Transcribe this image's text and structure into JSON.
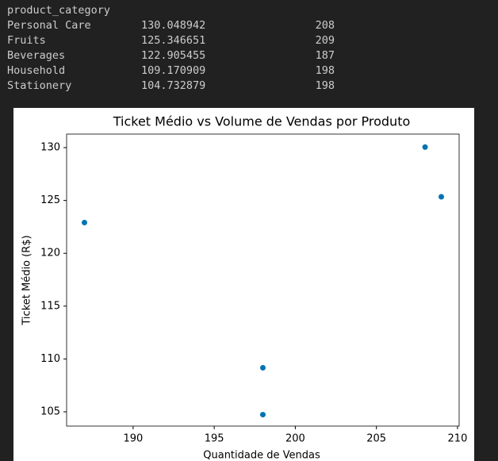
{
  "table": {
    "index_name": "product_category",
    "rows": [
      [
        "Personal Care",
        130.048942,
        208
      ],
      [
        "Fruits",
        125.346651,
        209
      ],
      [
        "Beverages",
        122.905455,
        187
      ],
      [
        "Household",
        109.170909,
        198
      ],
      [
        "Stationery",
        104.732879,
        198
      ]
    ]
  },
  "chart_data": {
    "type": "scatter",
    "title": "Ticket Médio vs Volume de Vendas por Produto",
    "x_label": "Quantidade de Vendas",
    "y_label": "Ticket Médio (R$)",
    "x": [
      208,
      209,
      187,
      198,
      198
    ],
    "values": [
      130.048942,
      125.346651,
      122.905455,
      109.170909,
      104.732879
    ],
    "color": "#0173b2",
    "xlim": [
      185.9,
      210.1
    ],
    "ylim": [
      103.65,
      131.28
    ],
    "xticks": [
      190,
      195,
      200,
      205,
      210
    ],
    "yticks": [
      105,
      110,
      115,
      120,
      125,
      130
    ],
    "grid": false
  }
}
